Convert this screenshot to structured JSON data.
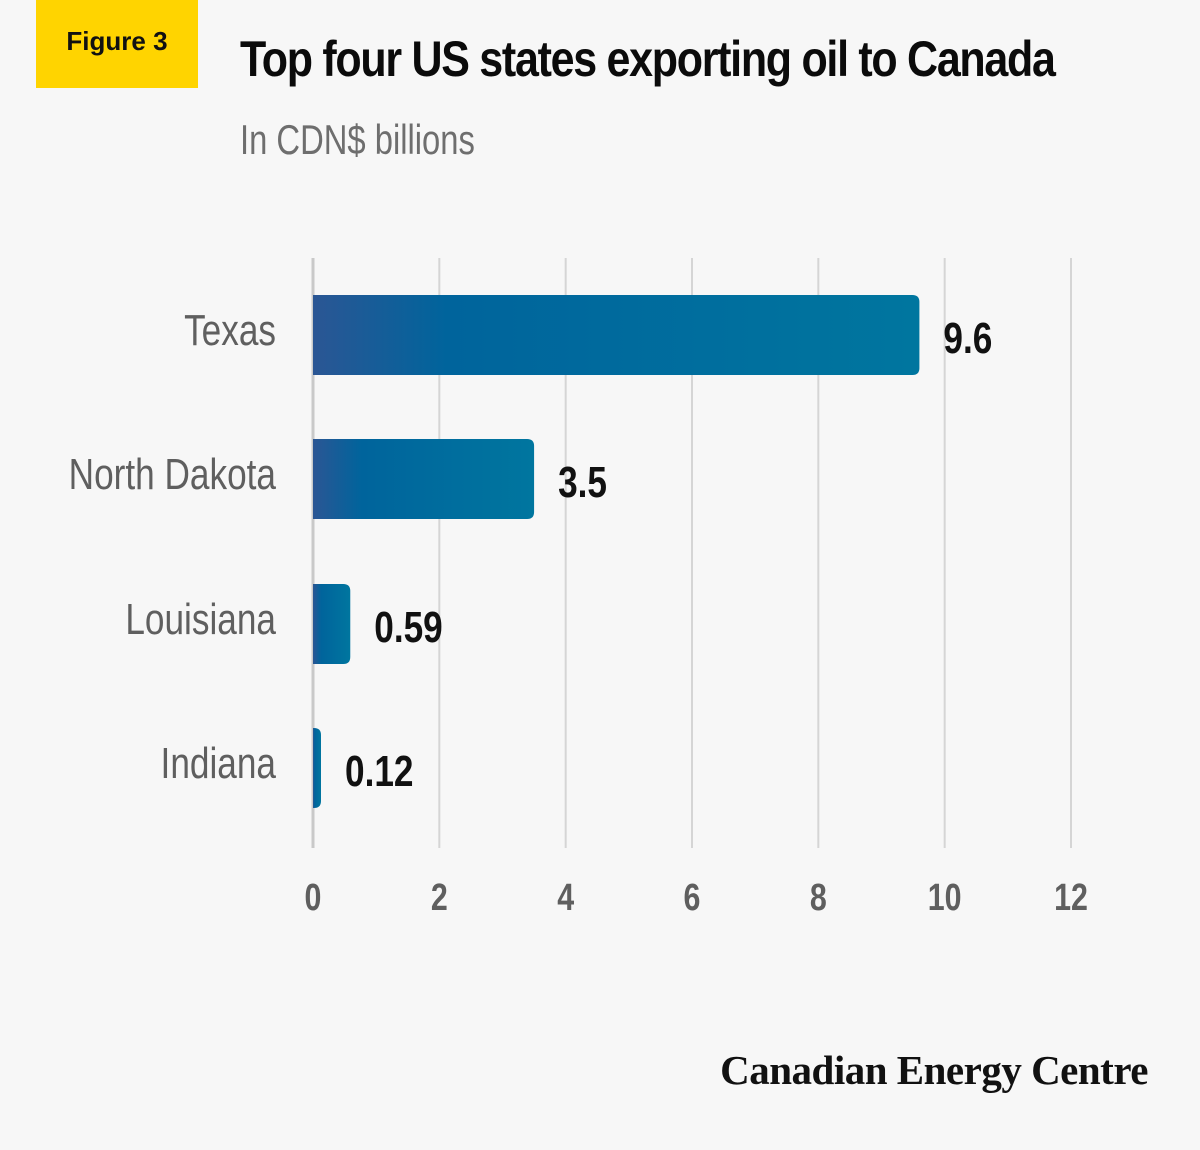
{
  "badge": "Figure 3",
  "footer": "Canadian Energy Centre",
  "colors": {
    "badge": "#ffd400",
    "bar_start": "#2b5694",
    "bar_mid": "#00649c",
    "bar_end": "#00769f",
    "grid": "#d5d5d5",
    "axis": "#c9c9c9",
    "category_text": "#5f5f5f",
    "tick_text": "#5f5f5f",
    "value_text": "#111111"
  },
  "chart_data": {
    "type": "bar",
    "orientation": "horizontal",
    "title": "Top four US states exporting oil to Canada",
    "subtitle": "In CDN$ billions",
    "categories": [
      "Texas",
      "North Dakota",
      "Louisiana",
      "Indiana"
    ],
    "values": [
      9.6,
      3.5,
      0.59,
      0.12
    ],
    "value_labels": [
      "9.6",
      "3.5",
      "0.59",
      "0.12"
    ],
    "xlim": [
      0,
      12
    ],
    "xticks": [
      0,
      2,
      4,
      6,
      8,
      10,
      12
    ],
    "xtick_labels": [
      "0",
      "2",
      "4",
      "6",
      "8",
      "10",
      "12"
    ],
    "grid": true,
    "xlabel": "",
    "ylabel": ""
  }
}
